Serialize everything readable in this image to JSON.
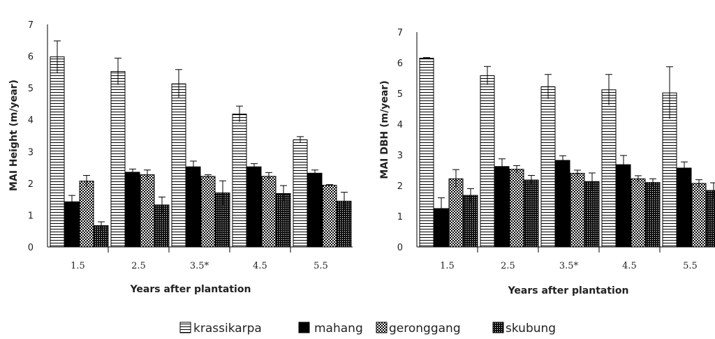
{
  "chart_data": [
    {
      "type": "bar",
      "xlabel": "Years after plantation",
      "ylabel": "MAI Height (m/year)",
      "categories": [
        "1.5",
        "2.5",
        "3.5*",
        "4.5",
        "5.5"
      ],
      "ylim": [
        0,
        7
      ],
      "yticks": [
        0,
        1,
        2,
        3,
        4,
        5,
        6,
        7
      ],
      "error_bars": true,
      "series": [
        {
          "name": "krassikarpa",
          "values": [
            5.98,
            5.52,
            5.13,
            4.18,
            3.37
          ],
          "errors": [
            0.5,
            0.42,
            0.45,
            0.25,
            0.1
          ]
        },
        {
          "name": "mahang",
          "values": [
            1.42,
            2.35,
            2.52,
            2.52,
            2.32
          ],
          "errors": [
            0.2,
            0.1,
            0.18,
            0.1,
            0.1
          ]
        },
        {
          "name": "geronggang",
          "values": [
            2.07,
            2.27,
            2.22,
            2.22,
            1.94
          ],
          "errors": [
            0.18,
            0.15,
            0.05,
            0.12,
            0.02
          ]
        },
        {
          "name": "skubung",
          "values": [
            0.67,
            1.32,
            1.7,
            1.68,
            1.44
          ],
          "errors": [
            0.12,
            0.25,
            0.38,
            0.25,
            0.28
          ]
        }
      ]
    },
    {
      "type": "bar",
      "xlabel": "Years after plantation",
      "ylabel": "MAI DBH (m/year)",
      "categories": [
        "1.5",
        "2.5",
        "3.5*",
        "4.5",
        "5.5"
      ],
      "ylim": [
        0,
        7
      ],
      "yticks": [
        0,
        1,
        2,
        3,
        4,
        5,
        6,
        7
      ],
      "error_bars": true,
      "series": [
        {
          "name": "krassikarpa",
          "values": [
            6.15,
            5.58,
            5.22,
            5.12,
            5.02
          ],
          "errors": [
            0.02,
            0.3,
            0.4,
            0.5,
            0.85
          ]
        },
        {
          "name": "mahang",
          "values": [
            1.25,
            2.62,
            2.82,
            2.68,
            2.57
          ],
          "errors": [
            0.35,
            0.25,
            0.15,
            0.3,
            0.2
          ]
        },
        {
          "name": "geronggang",
          "values": [
            2.22,
            2.53,
            2.4,
            2.22,
            2.07
          ],
          "errors": [
            0.3,
            0.12,
            0.1,
            0.1,
            0.12
          ]
        },
        {
          "name": "skubung",
          "values": [
            1.68,
            2.18,
            2.13,
            2.1,
            1.84
          ],
          "errors": [
            0.22,
            0.15,
            0.28,
            0.12,
            0.25
          ]
        }
      ]
    }
  ],
  "legend": {
    "position": "bottom",
    "items": [
      "krassikarpa",
      "mahang",
      "geronggang",
      "skubung"
    ]
  },
  "colors": {
    "mahang": "#000000",
    "krassikarpa_pattern": "horizontal-lines",
    "geronggang_pattern": "white-dots",
    "skubung_pattern": "dense-black-dots"
  }
}
